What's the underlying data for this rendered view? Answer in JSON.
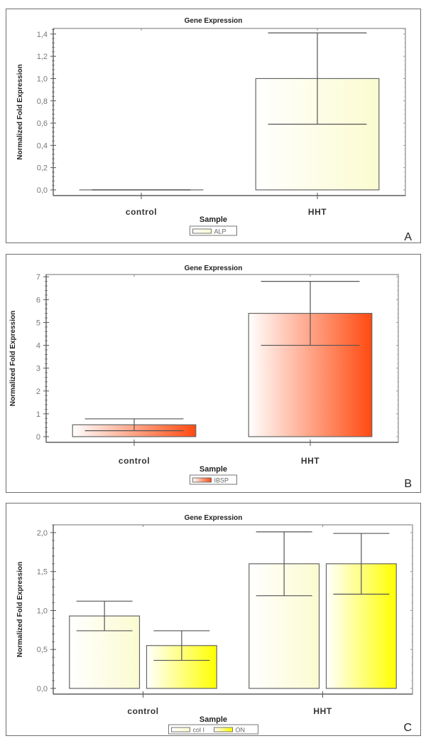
{
  "chart_data": [
    {
      "type": "bar",
      "panel_label": "A",
      "title": "Gene Expression",
      "xlabel": "Sample",
      "ylabel": "Normalized Fold Expression",
      "categories": [
        "control",
        "HHT"
      ],
      "ylim": [
        0,
        1.45
      ],
      "yticks": [
        0.0,
        0.2,
        0.4,
        0.6,
        0.8,
        1.0,
        1.2,
        1.4
      ],
      "ytick_labels": [
        "0,0",
        "0,2",
        "0,4",
        "0,6",
        "0,8",
        "1,0",
        "1,2",
        "1,4"
      ],
      "legend_position": "bottom-center",
      "series": [
        {
          "name": "ALP",
          "color": "#fdfde0",
          "gradient_end": "#fbfbd0",
          "values": [
            0.0,
            1.0
          ],
          "error_low": [
            0.0,
            0.59
          ],
          "error_high": [
            0.0,
            1.41
          ]
        }
      ]
    },
    {
      "type": "bar",
      "panel_label": "B",
      "title": "Gene Expression",
      "xlabel": "Sample",
      "ylabel": "Normalized Fold Expression",
      "categories": [
        "control",
        "HHT"
      ],
      "ylim": [
        0,
        7.1
      ],
      "yticks": [
        0,
        1,
        2,
        3,
        4,
        5,
        6,
        7
      ],
      "ytick_labels": [
        "0",
        "1",
        "2",
        "3",
        "4",
        "5",
        "6",
        "7"
      ],
      "legend_position": "bottom-center",
      "series": [
        {
          "name": "IBSP",
          "color": "#ff4a10",
          "gradient_end": "#ff4a10",
          "values": [
            0.52,
            5.4
          ],
          "error_low": [
            0.26,
            4.0
          ],
          "error_high": [
            0.78,
            6.8
          ]
        }
      ]
    },
    {
      "type": "bar",
      "panel_label": "C",
      "title": "Gene Expression",
      "xlabel": "Sample",
      "ylabel": "Normalized Fold Expression",
      "categories": [
        "control",
        "HHT"
      ],
      "ylim": [
        0,
        2.1
      ],
      "yticks": [
        0.0,
        0.5,
        1.0,
        1.5,
        2.0
      ],
      "ytick_labels": [
        "0,0",
        "0,5",
        "1,0",
        "1,5",
        "2,0"
      ],
      "legend_position": "bottom-center",
      "series": [
        {
          "name": "col I",
          "color": "#fdfde0",
          "gradient_end": "#fbfbd0",
          "values": [
            0.93,
            1.6
          ],
          "error_low": [
            0.74,
            1.19
          ],
          "error_high": [
            1.12,
            2.01
          ]
        },
        {
          "name": "ON",
          "color": "#ffff00",
          "gradient_end": "#ffff00",
          "values": [
            0.55,
            1.6
          ],
          "error_low": [
            0.36,
            1.21
          ],
          "error_high": [
            0.74,
            1.99
          ]
        }
      ]
    }
  ]
}
